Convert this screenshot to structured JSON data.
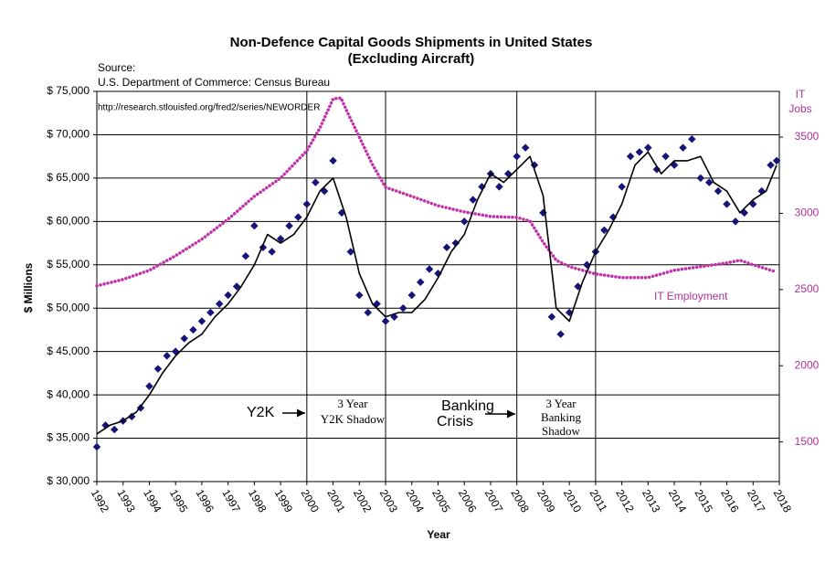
{
  "chart_data": {
    "type": "combo",
    "title": [
      "Non-Defence Capital Goods Shipments in United States",
      "(Excluding Aircraft)"
    ],
    "source": [
      "Source:",
      "U.S. Department of Commerce: Census Bureau",
      "http://research.stlouisfed.org/fred2/series/NEWORDER"
    ],
    "x_label": "Year",
    "y_label": "$ Millions",
    "y2_label": [
      "IT",
      "Jobs"
    ],
    "annotations": [
      "Y2K",
      "3 Year",
      "Y2K Shadow",
      "Banking",
      "Crisis",
      "3 Year",
      "Banking",
      "Shadow",
      "IT Employment"
    ],
    "reference_lines": [
      2000,
      2003,
      2008,
      2011
    ],
    "xlim": [
      1992,
      2018
    ],
    "xticks": [
      1992,
      1993,
      1994,
      1995,
      1996,
      1997,
      1998,
      1999,
      2000,
      2001,
      2002,
      2003,
      2004,
      2005,
      2006,
      2007,
      2008,
      2009,
      2010,
      2011,
      2012,
      2013,
      2014,
      2015,
      2016,
      2017,
      2018
    ],
    "ylim": [
      30000,
      75000
    ],
    "yticks": [
      {
        "value": 30000,
        "label": "$ 30,000"
      },
      {
        "value": 35000,
        "label": "$ 35,000"
      },
      {
        "value": 40000,
        "label": "$ 40,000"
      },
      {
        "value": 45000,
        "label": "$ 45,000"
      },
      {
        "value": 50000,
        "label": "$ 50,000"
      },
      {
        "value": 55000,
        "label": "$ 55,000"
      },
      {
        "value": 60000,
        "label": "$ 60,000"
      },
      {
        "value": 65000,
        "label": "$ 65,000"
      },
      {
        "value": 70000,
        "label": "$ 70,000"
      },
      {
        "value": 75000,
        "label": "$ 75,000"
      }
    ],
    "y2lim": [
      1240,
      3800
    ],
    "y2ticks": [
      1500,
      2000,
      2500,
      3000,
      3500
    ],
    "grid": true,
    "series": [
      {
        "mark": "diamond",
        "color": "#14147a",
        "x": [
          1992,
          1992.33,
          1992.67,
          1993,
          1993.33,
          1993.67,
          1994,
          1994.33,
          1994.67,
          1995,
          1995.33,
          1995.67,
          1996,
          1996.33,
          1996.67,
          1997,
          1997.33,
          1997.67,
          1998,
          1998.33,
          1998.67,
          1999,
          1999.33,
          1999.67,
          2000,
          2000.33,
          2000.67,
          2001,
          2001.33,
          2001.67,
          2002,
          2002.33,
          2002.67,
          2003,
          2003.33,
          2003.67,
          2004,
          2004.33,
          2004.67,
          2005,
          2005.33,
          2005.67,
          2006,
          2006.33,
          2006.67,
          2007,
          2007.33,
          2007.67,
          2008,
          2008.33,
          2008.67,
          2009,
          2009.33,
          2009.67,
          2010,
          2010.33,
          2010.67,
          2011,
          2011.33,
          2011.67,
          2012,
          2012.33,
          2012.67,
          2013,
          2013.33,
          2013.67,
          2014,
          2014.33,
          2014.67,
          2015,
          2015.33,
          2015.67,
          2016,
          2016.33,
          2016.67,
          2017,
          2017.33,
          2017.67,
          2017.9
        ],
        "values": [
          34000,
          36500,
          36000,
          37000,
          37500,
          38500,
          41000,
          43000,
          44500,
          45000,
          46500,
          47500,
          48500,
          49500,
          50500,
          51500,
          52500,
          56000,
          59500,
          57000,
          56500,
          58000,
          59500,
          60500,
          62000,
          64500,
          63500,
          67000,
          61000,
          56500,
          51500,
          49500,
          50500,
          48500,
          49000,
          50000,
          51500,
          53000,
          54500,
          54000,
          57000,
          57500,
          60000,
          62500,
          64000,
          65500,
          64000,
          65500,
          67500,
          68500,
          66500,
          61000,
          49000,
          47000,
          49500,
          52500,
          55000,
          56500,
          59000,
          60500,
          64000,
          67500,
          68000,
          68500,
          66000,
          67500,
          66500,
          68500,
          69500,
          65000,
          64500,
          63500,
          62000,
          60000,
          61000,
          62000,
          63500,
          66500,
          67000
        ]
      },
      {
        "mark": "line",
        "color": "#000000",
        "x": [
          1992,
          1992.5,
          1993,
          1993.5,
          1994,
          1994.5,
          1995,
          1995.5,
          1996,
          1996.5,
          1997,
          1997.5,
          1998,
          1998.5,
          1999,
          1999.5,
          2000,
          2000.5,
          2001,
          2001.5,
          2002,
          2002.5,
          2003,
          2003.5,
          2004,
          2004.5,
          2005,
          2005.5,
          2006,
          2006.5,
          2007,
          2007.5,
          2008,
          2008.5,
          2009,
          2009.5,
          2010,
          2010.5,
          2011,
          2011.5,
          2012,
          2012.5,
          2013,
          2013.5,
          2014,
          2014.5,
          2015,
          2015.5,
          2016,
          2016.5,
          2017,
          2017.5,
          2017.9
        ],
        "values": [
          35500,
          36500,
          37000,
          38000,
          40000,
          42500,
          44500,
          46000,
          47000,
          49000,
          50500,
          52500,
          55000,
          58500,
          57500,
          58500,
          60500,
          63500,
          65000,
          60500,
          54000,
          50500,
          49000,
          49500,
          49500,
          51000,
          53500,
          56500,
          58500,
          62500,
          65500,
          64500,
          66000,
          67500,
          63000,
          50000,
          48500,
          53000,
          56500,
          59000,
          62000,
          66500,
          68000,
          65500,
          67000,
          67000,
          67500,
          64500,
          63500,
          61000,
          62500,
          63500,
          66500
        ]
      },
      {
        "mark": "dots",
        "color": "#c030a8",
        "axis": "y2",
        "x": [
          1992,
          1993,
          1994,
          1995,
          1996,
          1997,
          1998,
          1999,
          2000,
          2000.5,
          2001,
          2001.3,
          2001.5,
          2002,
          2002.5,
          2003,
          2004,
          2005,
          2006,
          2007,
          2008,
          2008.5,
          2009,
          2009.5,
          2010,
          2011,
          2012,
          2013,
          2014,
          2015,
          2016,
          2016.5,
          2017,
          2017.8
        ],
        "values": [
          2524,
          2566,
          2626,
          2722,
          2830,
          2961,
          3111,
          3231,
          3410,
          3560,
          3751,
          3757,
          3680,
          3500,
          3320,
          3171,
          3111,
          3050,
          3009,
          2979,
          2973,
          2949,
          2811,
          2692,
          2650,
          2602,
          2578,
          2578,
          2626,
          2650,
          2674,
          2692,
          2662,
          2620
        ]
      }
    ]
  }
}
